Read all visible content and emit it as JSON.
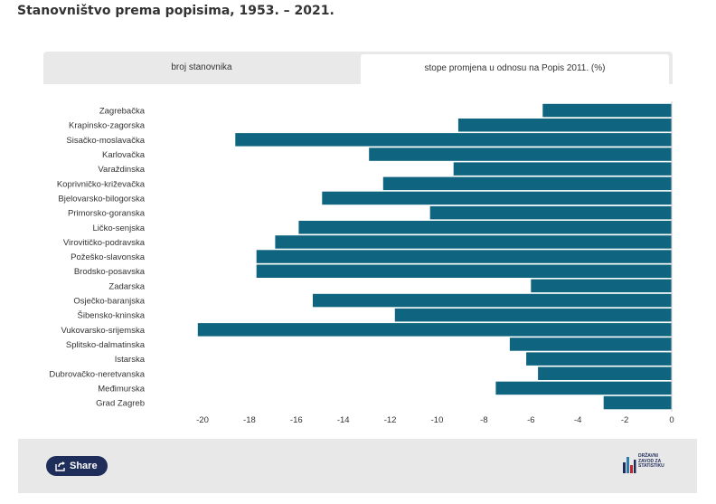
{
  "page": {
    "title": "Stanovništvo prema popisima, 1953. – 2021."
  },
  "tabs": [
    {
      "label": "broj stanovnika",
      "active": false
    },
    {
      "label": "stope promjena u odnosu na Popis 2011. (%)",
      "active": true
    }
  ],
  "footer": {
    "share_label": "Share",
    "logo_text": "DRŽAVNI\nZAVOD ZA\nSTATISTIKU"
  },
  "colors": {
    "bar": "#0f6480",
    "footer_bg": "#e8e8e8",
    "share_bg": "#1f2d5a"
  },
  "chart_data": {
    "type": "bar",
    "orientation": "horizontal",
    "title": "",
    "xlabel": "",
    "ylabel": "",
    "xlim": [
      -20,
      0
    ],
    "xticks": [
      -20,
      -18,
      -16,
      -14,
      -12,
      -10,
      -8,
      -6,
      -4,
      -2,
      0
    ],
    "grid": false,
    "legend": "none",
    "categories": [
      "Zagrebačka",
      "Krapinsko-zagorska",
      "Sisačko-moslavačka",
      "Karlovačka",
      "Varaždinska",
      "Koprivničko-križevačka",
      "Bjelovarsko-bilogorska",
      "Primorsko-goranska",
      "Ličko-senjska",
      "Virovitičko-podravska",
      "Požeško-slavonska",
      "Brodsko-posavska",
      "Zadarska",
      "Osječko-baranjska",
      "Šibensko-kninska",
      "Vukovarsko-srijemska",
      "Splitsko-dalmatinska",
      "Istarska",
      "Dubrovačko-neretvanska",
      "Međimurska",
      "Grad Zagreb"
    ],
    "values": [
      -5.5,
      -9.1,
      -18.6,
      -12.9,
      -9.3,
      -12.3,
      -14.9,
      -10.3,
      -15.9,
      -16.9,
      -17.7,
      -17.7,
      -6.0,
      -15.3,
      -11.8,
      -20.2,
      -6.9,
      -6.2,
      -5.7,
      -7.5,
      -2.9
    ]
  }
}
